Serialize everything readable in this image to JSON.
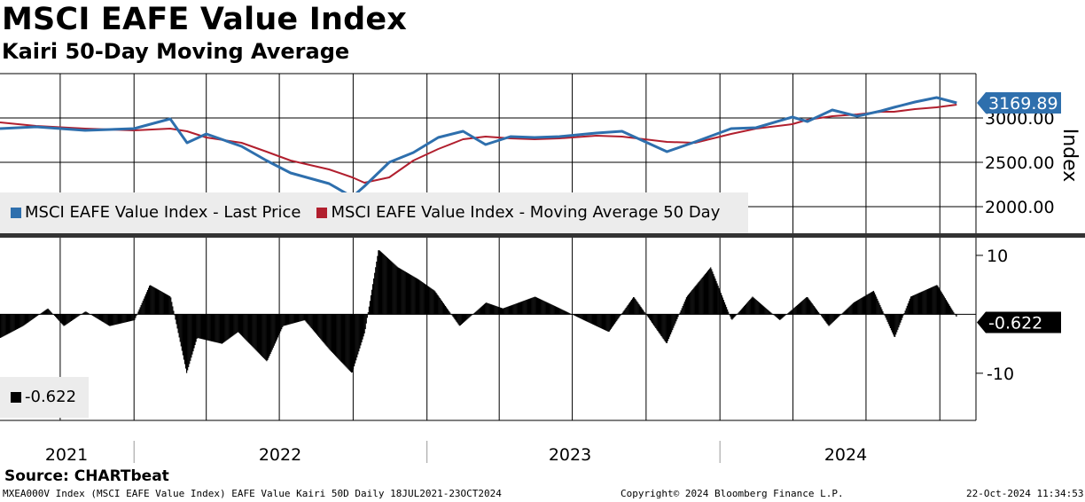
{
  "title": "MSCI EAFE Value Index",
  "subtitle": "Kairi 50-Day Moving Average",
  "source": "Source: CHARTbeat",
  "footer": {
    "left": "MXEA000V Index (MSCI EAFE Value Index) EAFE Value Kairi 50D  Daily 18JUL2021-23OCT2024",
    "center": "Copyright© 2024 Bloomberg Finance L.P.",
    "right": "22-Oct-2024 11:34:53"
  },
  "colors": {
    "price": "#2e6fad",
    "ma": "#b11f2e",
    "kairi": "#000000",
    "badge_price": "#2e6fad",
    "badge_kairi": "#000000",
    "grid": "#000000"
  },
  "chart_data": [
    {
      "type": "line",
      "panel": "upper",
      "ylabel": "Index",
      "ylim": [
        1700,
        3500
      ],
      "yticks": [
        {
          "v": 3000,
          "label": "3000.00"
        },
        {
          "v": 2500,
          "label": "2500.00"
        },
        {
          "v": 2000,
          "label": "2000.00"
        }
      ],
      "last_value_label": "3169.89",
      "legend": [
        "MSCI EAFE Value Index - Last Price",
        "MSCI EAFE Value Index - Moving Average 50 Day"
      ],
      "x_dates": [
        "2021-07-18",
        "2021-09-01",
        "2021-11-01",
        "2022-01-01",
        "2022-02-15",
        "2022-03-08",
        "2022-04-01",
        "2022-05-15",
        "2022-06-15",
        "2022-07-15",
        "2022-09-01",
        "2022-09-30",
        "2022-10-15",
        "2022-11-15",
        "2022-12-15",
        "2023-01-15",
        "2023-02-15",
        "2023-03-15",
        "2023-04-15",
        "2023-05-15",
        "2023-06-15",
        "2023-07-31",
        "2023-09-01",
        "2023-10-27",
        "2023-12-01",
        "2024-01-15",
        "2024-02-15",
        "2024-03-31",
        "2024-04-19",
        "2024-05-20",
        "2024-06-20",
        "2024-07-20",
        "2024-08-05",
        "2024-08-31",
        "2024-09-27",
        "2024-10-22"
      ],
      "series": [
        {
          "name": "MSCI EAFE Value Index - Last Price",
          "values": [
            2880,
            2900,
            2860,
            2880,
            2990,
            2720,
            2820,
            2680,
            2520,
            2380,
            2260,
            2110,
            2230,
            2500,
            2610,
            2780,
            2850,
            2700,
            2790,
            2780,
            2790,
            2830,
            2850,
            2620,
            2730,
            2880,
            2890,
            3010,
            2960,
            3090,
            3020,
            3080,
            3120,
            3180,
            3230,
            3170
          ]
        },
        {
          "name": "MSCI EAFE Value Index - Moving Average 50 Day",
          "values": [
            2950,
            2910,
            2880,
            2860,
            2880,
            2850,
            2780,
            2720,
            2620,
            2520,
            2420,
            2330,
            2270,
            2330,
            2520,
            2650,
            2760,
            2790,
            2770,
            2760,
            2770,
            2800,
            2790,
            2730,
            2720,
            2820,
            2880,
            2930,
            2980,
            3020,
            3040,
            3070,
            3070,
            3100,
            3120,
            3150
          ]
        }
      ]
    },
    {
      "type": "bar",
      "panel": "lower",
      "ylim": [
        -18,
        13
      ],
      "yticks": [
        {
          "v": 10,
          "label": "10"
        },
        {
          "v": -10,
          "label": "-10"
        }
      ],
      "last_value_label": "-0.622",
      "legend": [
        "-0.622"
      ],
      "x_dates": [
        "2021-07-18",
        "2021-08-15",
        "2021-09-15",
        "2021-10-05",
        "2021-11-01",
        "2021-12-01",
        "2022-01-01",
        "2022-01-20",
        "2022-02-15",
        "2022-03-07",
        "2022-03-20",
        "2022-04-20",
        "2022-05-10",
        "2022-06-15",
        "2022-07-05",
        "2022-08-01",
        "2022-09-01",
        "2022-09-29",
        "2022-10-15",
        "2022-11-01",
        "2022-11-25",
        "2022-12-20",
        "2023-01-10",
        "2023-02-10",
        "2023-03-15",
        "2023-04-05",
        "2023-05-15",
        "2023-06-15",
        "2023-07-15",
        "2023-08-15",
        "2023-09-15",
        "2023-10-26",
        "2023-11-20",
        "2023-12-20",
        "2024-01-15",
        "2024-02-10",
        "2024-03-15",
        "2024-04-18",
        "2024-05-15",
        "2024-06-15",
        "2024-07-10",
        "2024-08-05",
        "2024-08-25",
        "2024-09-27",
        "2024-10-22"
      ],
      "values": [
        -4,
        -2,
        1,
        -2,
        0.5,
        -2,
        -1,
        5,
        3,
        -10,
        -4,
        -5,
        -3,
        -8,
        -2,
        -1,
        -6,
        -10,
        -3,
        11,
        8,
        6,
        4,
        -2,
        2,
        1,
        3,
        1,
        -1,
        -3,
        3,
        -5,
        3,
        8,
        -1,
        3,
        -1,
        3,
        -2,
        2,
        4,
        -4,
        3,
        5,
        -0.622
      ]
    }
  ],
  "x_axis": {
    "labels": [
      "2021",
      "2022",
      "2023",
      "2024"
    ]
  }
}
